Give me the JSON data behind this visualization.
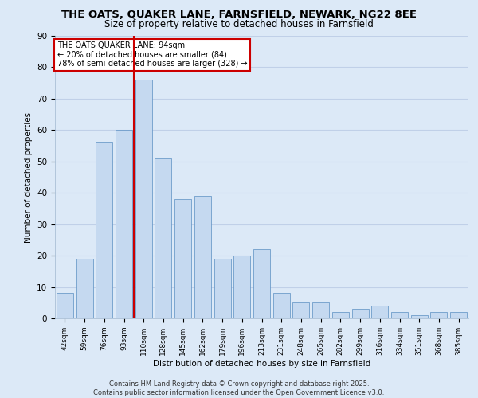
{
  "title_line1": "THE OATS, QUAKER LANE, FARNSFIELD, NEWARK, NG22 8EE",
  "title_line2": "Size of property relative to detached houses in Farnsfield",
  "xlabel": "Distribution of detached houses by size in Farnsfield",
  "ylabel": "Number of detached properties",
  "categories": [
    "42sqm",
    "59sqm",
    "76sqm",
    "93sqm",
    "110sqm",
    "128sqm",
    "145sqm",
    "162sqm",
    "179sqm",
    "196sqm",
    "213sqm",
    "231sqm",
    "248sqm",
    "265sqm",
    "282sqm",
    "299sqm",
    "316sqm",
    "334sqm",
    "351sqm",
    "368sqm",
    "385sqm"
  ],
  "values": [
    8,
    19,
    56,
    60,
    76,
    51,
    38,
    39,
    19,
    20,
    22,
    8,
    5,
    5,
    2,
    3,
    4,
    2,
    1,
    2,
    2
  ],
  "bar_color": "#c5d9f0",
  "bar_edge_color": "#5a8fc2",
  "grid_color": "#c0d0e8",
  "background_color": "#dce9f7",
  "red_line_x": 3.5,
  "annotation_title": "THE OATS QUAKER LANE: 94sqm",
  "annotation_line2": "← 20% of detached houses are smaller (84)",
  "annotation_line3": "78% of semi-detached houses are larger (328) →",
  "annotation_box_color": "#ffffff",
  "annotation_box_edge": "#cc0000",
  "red_line_color": "#cc0000",
  "ylim": [
    0,
    90
  ],
  "yticks": [
    0,
    10,
    20,
    30,
    40,
    50,
    60,
    70,
    80,
    90
  ],
  "footer_line1": "Contains HM Land Registry data © Crown copyright and database right 2025.",
  "footer_line2": "Contains public sector information licensed under the Open Government Licence v3.0."
}
